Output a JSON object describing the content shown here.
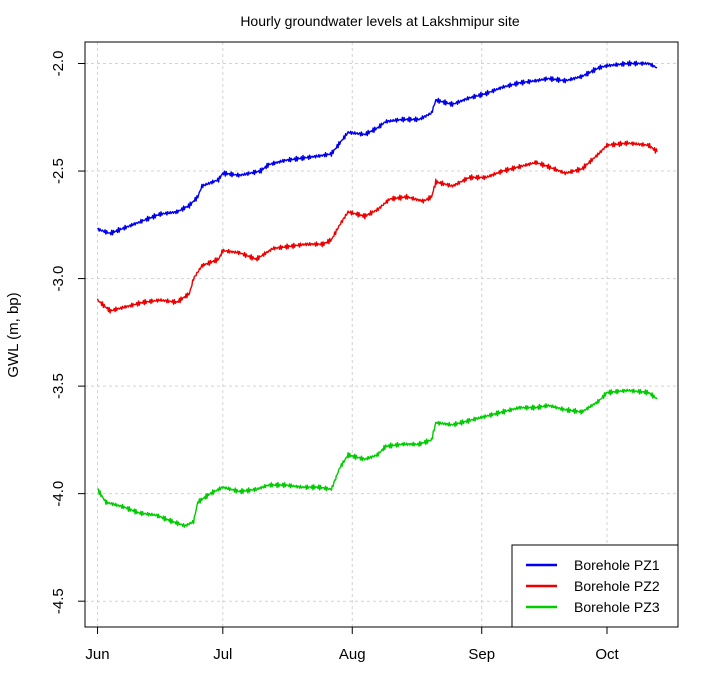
{
  "chart_data": {
    "type": "line",
    "title": "Hourly groundwater levels at Lakshmipur site",
    "xlabel": "",
    "ylabel": "GWL (m, bp)",
    "x_ticks": [
      "Jun",
      "Jul",
      "Aug",
      "Sep",
      "Oct"
    ],
    "x_tick_dates": [
      "2013-06-01",
      "2013-07-01",
      "2013-08-01",
      "2013-09-01",
      "2013-10-01"
    ],
    "xlim": [
      "2013-05-29",
      "2013-10-18"
    ],
    "ylim": [
      -4.62,
      -1.9
    ],
    "y_ticks": [
      -2.0,
      -2.5,
      -3.0,
      -3.5,
      -4.0,
      -4.5
    ],
    "grid": true,
    "legend_position": "bottom-right",
    "noise": 0.012,
    "series": [
      {
        "name": "Borehole PZ1",
        "color": "#0000ee",
        "points": [
          [
            "2013-06-01",
            -2.77
          ],
          [
            "2013-06-04",
            -2.79
          ],
          [
            "2013-06-08",
            -2.76
          ],
          [
            "2013-06-12",
            -2.73
          ],
          [
            "2013-06-16",
            -2.7
          ],
          [
            "2013-06-20",
            -2.69
          ],
          [
            "2013-06-23",
            -2.66
          ],
          [
            "2013-06-25",
            -2.62
          ],
          [
            "2013-06-26",
            -2.57
          ],
          [
            "2013-06-30",
            -2.54
          ],
          [
            "2013-07-01",
            -2.51
          ],
          [
            "2013-07-05",
            -2.52
          ],
          [
            "2013-07-10",
            -2.5
          ],
          [
            "2013-07-12",
            -2.47
          ],
          [
            "2013-07-16",
            -2.45
          ],
          [
            "2013-07-20",
            -2.44
          ],
          [
            "2013-07-24",
            -2.43
          ],
          [
            "2013-07-27",
            -2.42
          ],
          [
            "2013-07-29",
            -2.37
          ],
          [
            "2013-07-31",
            -2.32
          ],
          [
            "2013-08-04",
            -2.33
          ],
          [
            "2013-08-07",
            -2.3
          ],
          [
            "2013-08-09",
            -2.27
          ],
          [
            "2013-08-13",
            -2.26
          ],
          [
            "2013-08-17",
            -2.26
          ],
          [
            "2013-08-20",
            -2.23
          ],
          [
            "2013-08-21",
            -2.17
          ],
          [
            "2013-08-25",
            -2.19
          ],
          [
            "2013-08-29",
            -2.16
          ],
          [
            "2013-09-02",
            -2.14
          ],
          [
            "2013-09-06",
            -2.11
          ],
          [
            "2013-09-10",
            -2.09
          ],
          [
            "2013-09-14",
            -2.08
          ],
          [
            "2013-09-17",
            -2.07
          ],
          [
            "2013-09-21",
            -2.08
          ],
          [
            "2013-09-25",
            -2.06
          ],
          [
            "2013-09-29",
            -2.02
          ],
          [
            "2013-10-01",
            -2.01
          ],
          [
            "2013-10-06",
            -2.0
          ],
          [
            "2013-10-11",
            -2.0
          ],
          [
            "2013-10-13",
            -2.02
          ]
        ]
      },
      {
        "name": "Borehole PZ2",
        "color": "#ee0000",
        "points": [
          [
            "2013-06-01",
            -3.1
          ],
          [
            "2013-06-04",
            -3.15
          ],
          [
            "2013-06-08",
            -3.13
          ],
          [
            "2013-06-12",
            -3.11
          ],
          [
            "2013-06-16",
            -3.1
          ],
          [
            "2013-06-20",
            -3.11
          ],
          [
            "2013-06-23",
            -3.07
          ],
          [
            "2013-06-24",
            -3.0
          ],
          [
            "2013-06-26",
            -2.94
          ],
          [
            "2013-06-30",
            -2.91
          ],
          [
            "2013-07-01",
            -2.87
          ],
          [
            "2013-07-05",
            -2.88
          ],
          [
            "2013-07-09",
            -2.91
          ],
          [
            "2013-07-13",
            -2.86
          ],
          [
            "2013-07-17",
            -2.85
          ],
          [
            "2013-07-21",
            -2.84
          ],
          [
            "2013-07-25",
            -2.84
          ],
          [
            "2013-07-27",
            -2.82
          ],
          [
            "2013-07-29",
            -2.75
          ],
          [
            "2013-07-31",
            -2.69
          ],
          [
            "2013-08-04",
            -2.71
          ],
          [
            "2013-08-07",
            -2.68
          ],
          [
            "2013-08-10",
            -2.63
          ],
          [
            "2013-08-14",
            -2.62
          ],
          [
            "2013-08-18",
            -2.64
          ],
          [
            "2013-08-20",
            -2.62
          ],
          [
            "2013-08-21",
            -2.55
          ],
          [
            "2013-08-25",
            -2.57
          ],
          [
            "2013-08-29",
            -2.53
          ],
          [
            "2013-09-02",
            -2.53
          ],
          [
            "2013-09-06",
            -2.5
          ],
          [
            "2013-09-10",
            -2.48
          ],
          [
            "2013-09-14",
            -2.46
          ],
          [
            "2013-09-17",
            -2.48
          ],
          [
            "2013-09-21",
            -2.51
          ],
          [
            "2013-09-25",
            -2.49
          ],
          [
            "2013-09-29",
            -2.42
          ],
          [
            "2013-10-01",
            -2.38
          ],
          [
            "2013-10-06",
            -2.37
          ],
          [
            "2013-10-11",
            -2.38
          ],
          [
            "2013-10-13",
            -2.41
          ]
        ]
      },
      {
        "name": "Borehole PZ3",
        "color": "#00cc00",
        "points": [
          [
            "2013-06-01",
            -3.98
          ],
          [
            "2013-06-03",
            -4.04
          ],
          [
            "2013-06-07",
            -4.06
          ],
          [
            "2013-06-11",
            -4.09
          ],
          [
            "2013-06-15",
            -4.1
          ],
          [
            "2013-06-19",
            -4.13
          ],
          [
            "2013-06-22",
            -4.15
          ],
          [
            "2013-06-24",
            -4.13
          ],
          [
            "2013-06-25",
            -4.04
          ],
          [
            "2013-06-28",
            -4.0
          ],
          [
            "2013-07-01",
            -3.97
          ],
          [
            "2013-07-05",
            -3.99
          ],
          [
            "2013-07-09",
            -3.98
          ],
          [
            "2013-07-12",
            -3.96
          ],
          [
            "2013-07-16",
            -3.96
          ],
          [
            "2013-07-20",
            -3.97
          ],
          [
            "2013-07-24",
            -3.97
          ],
          [
            "2013-07-27",
            -3.98
          ],
          [
            "2013-07-29",
            -3.88
          ],
          [
            "2013-07-31",
            -3.82
          ],
          [
            "2013-08-04",
            -3.84
          ],
          [
            "2013-08-07",
            -3.82
          ],
          [
            "2013-08-09",
            -3.78
          ],
          [
            "2013-08-13",
            -3.77
          ],
          [
            "2013-08-17",
            -3.77
          ],
          [
            "2013-08-20",
            -3.75
          ],
          [
            "2013-08-21",
            -3.67
          ],
          [
            "2013-08-25",
            -3.68
          ],
          [
            "2013-08-29",
            -3.66
          ],
          [
            "2013-09-02",
            -3.64
          ],
          [
            "2013-09-06",
            -3.62
          ],
          [
            "2013-09-10",
            -3.6
          ],
          [
            "2013-09-14",
            -3.6
          ],
          [
            "2013-09-17",
            -3.59
          ],
          [
            "2013-09-21",
            -3.61
          ],
          [
            "2013-09-25",
            -3.62
          ],
          [
            "2013-09-29",
            -3.57
          ],
          [
            "2013-10-01",
            -3.53
          ],
          [
            "2013-10-06",
            -3.52
          ],
          [
            "2013-10-11",
            -3.53
          ],
          [
            "2013-10-13",
            -3.56
          ]
        ]
      }
    ]
  }
}
